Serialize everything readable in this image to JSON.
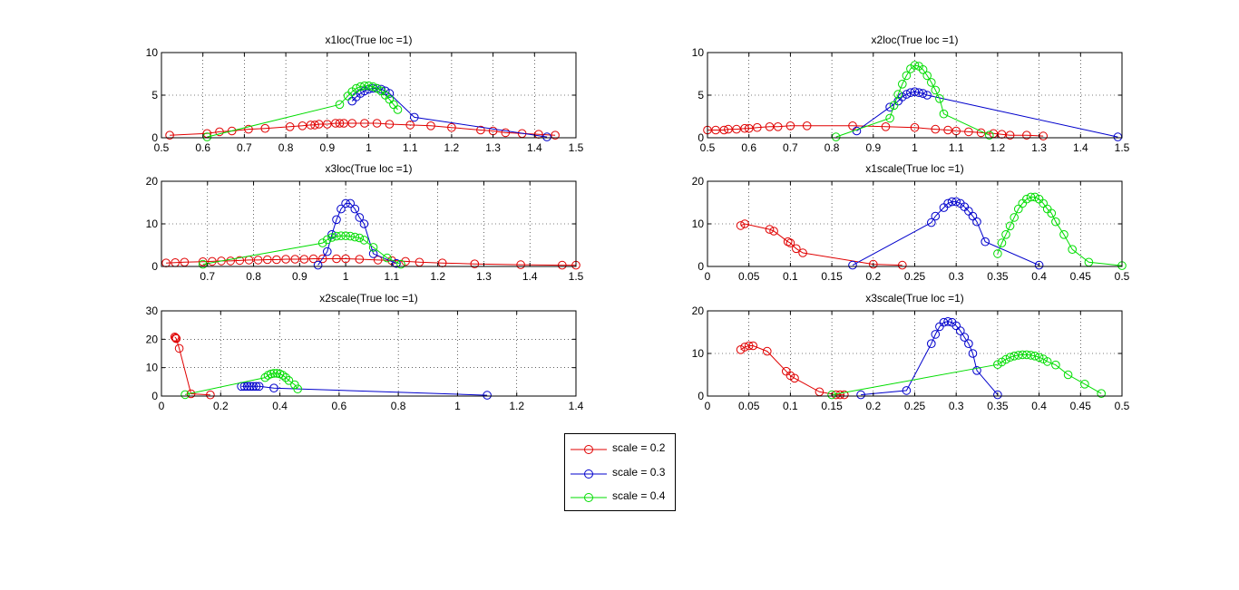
{
  "figure": {
    "background": "#ffffff"
  },
  "legend": {
    "items": [
      {
        "label": "scale = 0.2",
        "color": "#e00000"
      },
      {
        "label": "scale = 0.3",
        "color": "#0000cc"
      },
      {
        "label": "scale = 0.4",
        "color": "#00dd00"
      }
    ]
  },
  "chart_data": [
    {
      "type": "line",
      "title": "x1loc(True loc =1)",
      "xlim": [
        0.5,
        1.5
      ],
      "ylim": [
        0,
        10
      ],
      "xticks": [
        0.5,
        0.6,
        0.7,
        0.8,
        0.9,
        1,
        1.1,
        1.2,
        1.3,
        1.4,
        1.5
      ],
      "yticks": [
        0,
        5,
        10
      ],
      "grid": true,
      "series": [
        {
          "name": "scale = 0.2",
          "x": [
            0.52,
            0.61,
            0.64,
            0.67,
            0.71,
            0.75,
            0.81,
            0.84,
            0.86,
            0.87,
            0.88,
            0.9,
            0.92,
            0.93,
            0.94,
            0.96,
            0.99,
            1.02,
            1.05,
            1.1,
            1.15,
            1.2,
            1.27,
            1.3,
            1.33,
            1.37,
            1.41,
            1.45
          ],
          "y": [
            0.3,
            0.5,
            0.7,
            0.8,
            1.0,
            1.1,
            1.3,
            1.4,
            1.5,
            1.5,
            1.6,
            1.6,
            1.7,
            1.7,
            1.7,
            1.7,
            1.7,
            1.7,
            1.6,
            1.5,
            1.4,
            1.2,
            0.9,
            0.8,
            0.6,
            0.5,
            0.4,
            0.3
          ]
        },
        {
          "name": "scale = 0.3",
          "x": [
            0.96,
            0.97,
            0.98,
            0.99,
            1.0,
            1.01,
            1.02,
            1.03,
            1.04,
            1.05,
            1.11,
            1.43
          ],
          "y": [
            4.3,
            4.8,
            5.2,
            5.5,
            5.7,
            5.8,
            5.8,
            5.7,
            5.5,
            5.2,
            2.4,
            0.1
          ]
        },
        {
          "name": "scale = 0.4",
          "x": [
            0.61,
            0.93,
            0.95,
            0.96,
            0.97,
            0.98,
            0.99,
            1.0,
            1.01,
            1.02,
            1.03,
            1.04,
            1.05,
            1.06,
            1.07
          ],
          "y": [
            0.1,
            3.9,
            4.9,
            5.4,
            5.8,
            6.0,
            6.1,
            6.1,
            6.0,
            5.8,
            5.5,
            5.0,
            4.5,
            3.9,
            3.3
          ]
        }
      ]
    },
    {
      "type": "line",
      "title": "x2loc(True loc =1)",
      "xlim": [
        0.5,
        1.5
      ],
      "ylim": [
        0,
        10
      ],
      "xticks": [
        0.5,
        0.6,
        0.7,
        0.8,
        0.9,
        1,
        1.1,
        1.2,
        1.3,
        1.4,
        1.5
      ],
      "yticks": [
        0,
        5,
        10
      ],
      "grid": true,
      "series": [
        {
          "name": "scale = 0.2",
          "x": [
            0.5,
            0.52,
            0.54,
            0.55,
            0.57,
            0.59,
            0.6,
            0.62,
            0.65,
            0.67,
            0.7,
            0.74,
            0.85,
            0.93,
            1.0,
            1.05,
            1.08,
            1.1,
            1.13,
            1.16,
            1.19,
            1.21,
            1.23,
            1.27,
            1.31
          ],
          "y": [
            0.9,
            0.9,
            0.9,
            1.0,
            1.0,
            1.1,
            1.1,
            1.2,
            1.3,
            1.3,
            1.4,
            1.4,
            1.4,
            1.3,
            1.2,
            1.0,
            0.9,
            0.8,
            0.7,
            0.6,
            0.5,
            0.4,
            0.3,
            0.3,
            0.2
          ]
        },
        {
          "name": "scale = 0.3",
          "x": [
            0.86,
            0.94,
            0.96,
            0.97,
            0.98,
            0.99,
            1.0,
            1.01,
            1.02,
            1.03,
            1.49
          ],
          "y": [
            0.8,
            3.6,
            4.3,
            4.8,
            5.1,
            5.3,
            5.4,
            5.3,
            5.2,
            5.0,
            0.1
          ]
        },
        {
          "name": "scale = 0.4",
          "x": [
            0.81,
            0.94,
            0.95,
            0.96,
            0.97,
            0.98,
            0.99,
            1.0,
            1.01,
            1.02,
            1.03,
            1.04,
            1.05,
            1.06,
            1.07,
            1.18
          ],
          "y": [
            0.1,
            2.3,
            3.8,
            5.1,
            6.3,
            7.3,
            8.1,
            8.5,
            8.4,
            8.0,
            7.3,
            6.5,
            5.6,
            4.6,
            2.8,
            0.3
          ]
        }
      ]
    },
    {
      "type": "line",
      "title": "x3loc(True loc =1)",
      "xlim": [
        0.6,
        1.5
      ],
      "ylim": [
        0,
        20
      ],
      "xticks": [
        0.7,
        0.8,
        0.9,
        1,
        1.1,
        1.2,
        1.3,
        1.4,
        1.5
      ],
      "yticks": [
        0,
        10,
        20
      ],
      "grid": true,
      "series": [
        {
          "name": "scale = 0.2",
          "x": [
            0.61,
            0.63,
            0.65,
            0.69,
            0.71,
            0.73,
            0.75,
            0.77,
            0.79,
            0.81,
            0.83,
            0.85,
            0.87,
            0.89,
            0.91,
            0.93,
            0.95,
            0.98,
            1.0,
            1.03,
            1.07,
            1.1,
            1.13,
            1.16,
            1.21,
            1.28,
            1.38,
            1.47,
            1.5
          ],
          "y": [
            0.8,
            0.9,
            1.0,
            1.1,
            1.2,
            1.3,
            1.3,
            1.4,
            1.5,
            1.5,
            1.6,
            1.6,
            1.7,
            1.7,
            1.7,
            1.8,
            1.8,
            1.8,
            1.8,
            1.7,
            1.5,
            1.4,
            1.2,
            1.0,
            0.8,
            0.6,
            0.4,
            0.3,
            0.3
          ]
        },
        {
          "name": "scale = 0.3",
          "x": [
            0.94,
            0.96,
            0.97,
            0.98,
            0.99,
            1.0,
            1.01,
            1.02,
            1.03,
            1.04,
            1.06,
            1.11
          ],
          "y": [
            0.3,
            3.5,
            7.5,
            11.0,
            13.5,
            14.8,
            14.8,
            13.5,
            11.5,
            10.0,
            3.0,
            0.7
          ]
        },
        {
          "name": "scale = 0.4",
          "x": [
            0.69,
            0.95,
            0.96,
            0.97,
            0.98,
            0.99,
            1.0,
            1.01,
            1.02,
            1.03,
            1.04,
            1.06,
            1.09,
            1.12
          ],
          "y": [
            0.5,
            5.5,
            6.3,
            6.8,
            7.1,
            7.2,
            7.2,
            7.1,
            6.9,
            6.7,
            6.2,
            4.5,
            2.0,
            0.5
          ]
        }
      ]
    },
    {
      "type": "line",
      "title": "x1scale(True loc =1)",
      "xlim": [
        0,
        0.5
      ],
      "ylim": [
        0,
        20
      ],
      "xticks": [
        0,
        0.05,
        0.1,
        0.15,
        0.2,
        0.25,
        0.3,
        0.35,
        0.4,
        0.45,
        0.5
      ],
      "yticks": [
        0,
        10,
        20
      ],
      "grid": true,
      "series": [
        {
          "name": "scale = 0.2",
          "x": [
            0.04,
            0.045,
            0.075,
            0.08,
            0.097,
            0.1,
            0.107,
            0.115,
            0.2,
            0.235
          ],
          "y": [
            9.6,
            10.0,
            8.7,
            8.3,
            5.8,
            5.5,
            4.2,
            3.2,
            0.5,
            0.3
          ]
        },
        {
          "name": "scale = 0.3",
          "x": [
            0.175,
            0.27,
            0.275,
            0.285,
            0.29,
            0.295,
            0.3,
            0.305,
            0.31,
            0.315,
            0.32,
            0.325,
            0.335,
            0.4
          ],
          "y": [
            0.3,
            10.3,
            11.8,
            13.8,
            14.8,
            15.2,
            15.2,
            14.8,
            14.0,
            13.0,
            11.8,
            10.5,
            5.8,
            0.3
          ]
        },
        {
          "name": "scale = 0.4",
          "x": [
            0.35,
            0.355,
            0.36,
            0.365,
            0.37,
            0.375,
            0.38,
            0.385,
            0.39,
            0.395,
            0.4,
            0.405,
            0.41,
            0.415,
            0.42,
            0.43,
            0.44,
            0.46,
            0.5
          ],
          "y": [
            3.0,
            5.5,
            7.5,
            9.5,
            11.5,
            13.5,
            14.8,
            15.8,
            16.3,
            16.3,
            15.8,
            14.8,
            13.5,
            12.5,
            10.5,
            7.5,
            4.0,
            1.0,
            0.2
          ]
        }
      ]
    },
    {
      "type": "line",
      "title": "x2scale(True loc =1)",
      "xlim": [
        0,
        1.4
      ],
      "ylim": [
        0,
        30
      ],
      "xticks": [
        0,
        0.2,
        0.4,
        0.6,
        0.8,
        1,
        1.2,
        1.4
      ],
      "yticks": [
        0,
        10,
        20,
        30
      ],
      "grid": true,
      "series": [
        {
          "name": "scale = 0.2",
          "x": [
            0.045,
            0.048,
            0.05,
            0.06,
            0.1,
            0.165
          ],
          "y": [
            20.8,
            20.5,
            20.2,
            16.8,
            0.8,
            0.4
          ]
        },
        {
          "name": "scale = 0.3",
          "x": [
            0.27,
            0.28,
            0.29,
            0.3,
            0.31,
            0.32,
            0.33,
            0.38,
            1.1
          ],
          "y": [
            3.4,
            3.4,
            3.4,
            3.4,
            3.4,
            3.4,
            3.4,
            2.8,
            0.3
          ]
        },
        {
          "name": "scale = 0.4",
          "x": [
            0.08,
            0.35,
            0.36,
            0.37,
            0.38,
            0.39,
            0.4,
            0.41,
            0.42,
            0.43,
            0.45,
            0.46
          ],
          "y": [
            0.5,
            6.5,
            7.3,
            7.8,
            8.0,
            8.0,
            7.8,
            7.3,
            6.5,
            5.5,
            4.0,
            2.5
          ]
        }
      ]
    },
    {
      "type": "line",
      "title": "x3scale(True loc =1)",
      "xlim": [
        0,
        0.5
      ],
      "ylim": [
        0,
        20
      ],
      "xticks": [
        0,
        0.05,
        0.1,
        0.15,
        0.2,
        0.25,
        0.3,
        0.35,
        0.4,
        0.45,
        0.5
      ],
      "yticks": [
        0,
        10,
        20
      ],
      "grid": true,
      "series": [
        {
          "name": "scale = 0.2",
          "x": [
            0.04,
            0.045,
            0.05,
            0.055,
            0.072,
            0.095,
            0.1,
            0.105,
            0.135,
            0.155,
            0.16,
            0.165
          ],
          "y": [
            10.9,
            11.5,
            11.8,
            11.8,
            10.5,
            5.8,
            4.8,
            4.2,
            1.0,
            0.3,
            0.3,
            0.3
          ]
        },
        {
          "name": "scale = 0.3",
          "x": [
            0.185,
            0.24,
            0.27,
            0.275,
            0.28,
            0.285,
            0.29,
            0.295,
            0.3,
            0.305,
            0.31,
            0.315,
            0.32,
            0.325,
            0.35
          ],
          "y": [
            0.3,
            1.3,
            12.3,
            14.5,
            16.3,
            17.3,
            17.5,
            17.3,
            16.5,
            15.3,
            13.8,
            12.3,
            10.0,
            6.0,
            0.3
          ]
        },
        {
          "name": "scale = 0.4",
          "x": [
            0.15,
            0.35,
            0.355,
            0.36,
            0.365,
            0.37,
            0.375,
            0.38,
            0.385,
            0.39,
            0.395,
            0.4,
            0.405,
            0.41,
            0.42,
            0.435,
            0.455,
            0.475
          ],
          "y": [
            0.3,
            7.4,
            8.0,
            8.6,
            9.1,
            9.4,
            9.6,
            9.7,
            9.7,
            9.6,
            9.4,
            9.1,
            8.7,
            8.1,
            7.3,
            5.0,
            2.8,
            0.6
          ]
        }
      ]
    }
  ]
}
